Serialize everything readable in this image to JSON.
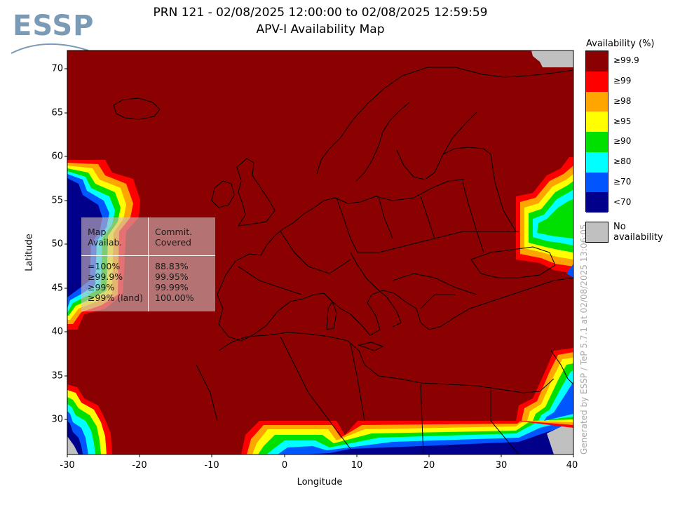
{
  "logo": {
    "text": "ESSP"
  },
  "title": {
    "line1": "PRN 121 - 02/08/2025 12:00:00 to 02/08/2025 12:59:59",
    "line2": "APV-I Availability Map"
  },
  "axes": {
    "xlabel": "Longitude",
    "ylabel": "Latitude",
    "xticks": [
      "-30",
      "-20",
      "-10",
      "0",
      "10",
      "20",
      "30",
      "40"
    ],
    "yticks": [
      "70",
      "65",
      "60",
      "55",
      "50",
      "45",
      "40",
      "35",
      "30"
    ],
    "xlim": [
      -30,
      40
    ],
    "ylim": [
      26,
      72
    ]
  },
  "legend": {
    "title": "Availability (%)",
    "items": [
      {
        "label": "≥99.9",
        "color": "#8b0000"
      },
      {
        "label": "≥99",
        "color": "#ff0000"
      },
      {
        "label": "≥98",
        "color": "#ffa500"
      },
      {
        "label": "≥95",
        "color": "#ffff00"
      },
      {
        "label": "≥90",
        "color": "#00e000"
      },
      {
        "label": "≥80",
        "color": "#00ffff"
      },
      {
        "label": "≥70",
        "color": "#0055ff"
      },
      {
        "label": "<70",
        "color": "#00008b"
      }
    ],
    "no_availability": {
      "label": "No availability",
      "color": "#c0c0c0"
    }
  },
  "stats_table": {
    "header": {
      "col1": [
        "Map",
        "Availab."
      ],
      "col2": [
        "Commit.",
        "Covered"
      ]
    },
    "rows": [
      {
        "availab": "=100%",
        "covered": "88.83%"
      },
      {
        "availab": "≥99.9%",
        "covered": "99.95%"
      },
      {
        "availab": "≥99%",
        "covered": "99.99%"
      },
      {
        "availab": "≥99% (land)",
        "covered": "100.00%"
      }
    ]
  },
  "generated_note": "Generated by ESSP / TeP 5.7.1 at 02/08/2025 13:06:05",
  "colors": {
    "background": "#8b0000",
    "coastline": "#000000",
    "no_availability": "#c0c0c0"
  }
}
